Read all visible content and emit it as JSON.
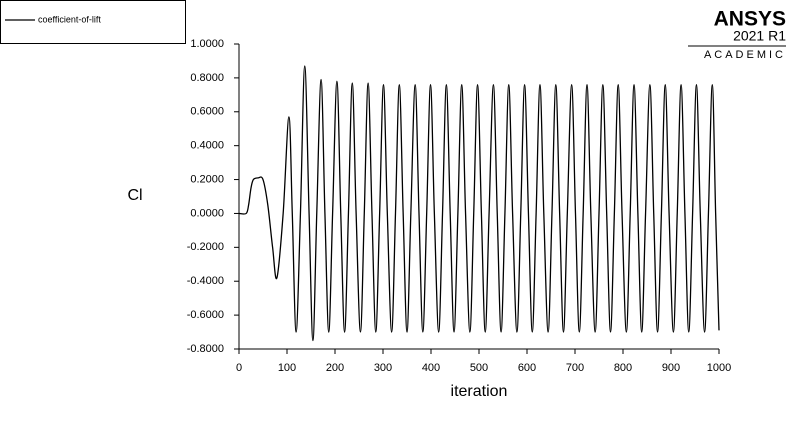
{
  "chart_data": {
    "type": "line",
    "brand": {
      "name": "ANSYS",
      "version": "2021 R1",
      "edition": "ACADEMIC"
    },
    "xlabel": "iteration",
    "ylabel": "Cl",
    "xlim": [
      0,
      1000
    ],
    "ylim": [
      -0.8,
      1.0
    ],
    "xticks": [
      0,
      100,
      200,
      300,
      400,
      500,
      600,
      700,
      800,
      900,
      1000
    ],
    "yticks": [
      {
        "value": 1.0,
        "label": "1.0000"
      },
      {
        "value": 0.8,
        "label": "0.8000"
      },
      {
        "value": 0.6,
        "label": "0.6000"
      },
      {
        "value": 0.4,
        "label": "0.4000"
      },
      {
        "value": 0.2,
        "label": "0.2000"
      },
      {
        "value": 0,
        "label": "0.0000"
      },
      {
        "value": -0.2,
        "label": "-0.2000"
      },
      {
        "value": -0.4,
        "label": "-0.4000"
      },
      {
        "value": -0.6,
        "label": "-0.6000"
      },
      {
        "value": -0.8,
        "label": "-0.8000"
      }
    ],
    "x": [
      0,
      15,
      20,
      25,
      30,
      40,
      50,
      60,
      70,
      79,
      92,
      104,
      111,
      119,
      128,
      137,
      146,
      154,
      162,
      171,
      179,
      187,
      195,
      204,
      212,
      220,
      228,
      236,
      244,
      253,
      261,
      269,
      277,
      285,
      293,
      301,
      309,
      318,
      326,
      334,
      342,
      350,
      358,
      367,
      375,
      383,
      391,
      399,
      407,
      416,
      424,
      432,
      440,
      448,
      456,
      464,
      472,
      481,
      489,
      497,
      505,
      513,
      521,
      530,
      538,
      546,
      554,
      562,
      570,
      579,
      587,
      595,
      603,
      611,
      619,
      627,
      635,
      644,
      652,
      660,
      668,
      676,
      684,
      693,
      701,
      709,
      717,
      725,
      733,
      742,
      750,
      758,
      766,
      774,
      782,
      790,
      798,
      807,
      815,
      823,
      831,
      839,
      847,
      856,
      864,
      872,
      880,
      888,
      896,
      905,
      913,
      921,
      929,
      937,
      945,
      953,
      961,
      970,
      978,
      986,
      993,
      1000
    ],
    "series": [
      {
        "name": "coefficient-of-lift",
        "color": "#000000",
        "values": [
          0,
          0,
          0.05,
          0.15,
          0.2,
          0.21,
          0.2,
          0.05,
          -0.2,
          -0.38,
          0,
          0.57,
          0,
          -0.7,
          0,
          0.87,
          0,
          -0.75,
          0,
          0.79,
          0,
          -0.7,
          0,
          0.78,
          0,
          -0.7,
          0,
          0.77,
          0,
          -0.7,
          0,
          0.77,
          0,
          -0.7,
          0,
          0.76,
          0,
          -0.7,
          0,
          0.76,
          0,
          -0.7,
          0,
          0.76,
          0,
          -0.7,
          0,
          0.76,
          0,
          -0.7,
          0,
          0.76,
          0,
          -0.7,
          0,
          0.76,
          0,
          -0.7,
          0,
          0.76,
          0,
          -0.7,
          0,
          0.76,
          0,
          -0.7,
          0,
          0.76,
          0,
          -0.7,
          0,
          0.76,
          0,
          -0.7,
          0,
          0.76,
          0,
          -0.7,
          0,
          0.76,
          0,
          -0.7,
          0,
          0.76,
          0,
          -0.7,
          0,
          0.76,
          0,
          -0.7,
          0,
          0.76,
          0,
          -0.7,
          0,
          0.76,
          0,
          -0.7,
          0,
          0.76,
          0,
          -0.7,
          0,
          0.76,
          0,
          -0.7,
          0,
          0.76,
          0,
          -0.7,
          0,
          0.76,
          0,
          -0.7,
          0,
          0.76,
          0,
          -0.7,
          0,
          0.76,
          0,
          -0.69
        ]
      }
    ]
  }
}
